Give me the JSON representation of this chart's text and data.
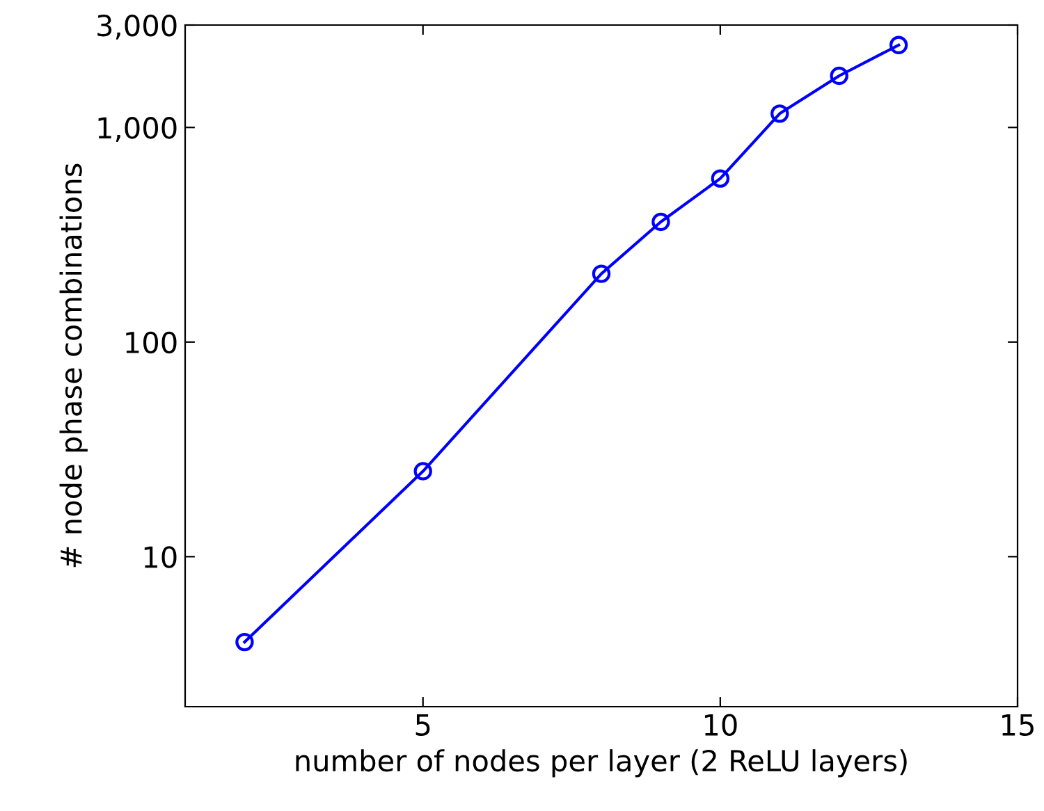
{
  "chart_data": {
    "type": "line",
    "xlabel": "number of nodes per layer (2 ReLU layers)",
    "ylabel": "# node phase combinations",
    "x": [
      2,
      5,
      8,
      9,
      10,
      11,
      12,
      13
    ],
    "series": [
      {
        "color": "#0000ff",
        "values": [
          4,
          25,
          208,
          363,
          578,
          1160,
          1740,
          2420
        ]
      }
    ],
    "xlim": [
      1,
      15
    ],
    "xticks": [
      5,
      10,
      15
    ],
    "ylim": [
      2,
      3000
    ],
    "yticks": [
      10,
      100,
      {
        "value": 1000,
        "label": "1,000"
      },
      {
        "value": 3000,
        "label": "3,000"
      }
    ],
    "log": "y",
    "grid": false,
    "legend": false,
    "marker": "circle",
    "line_style": "solid"
  }
}
